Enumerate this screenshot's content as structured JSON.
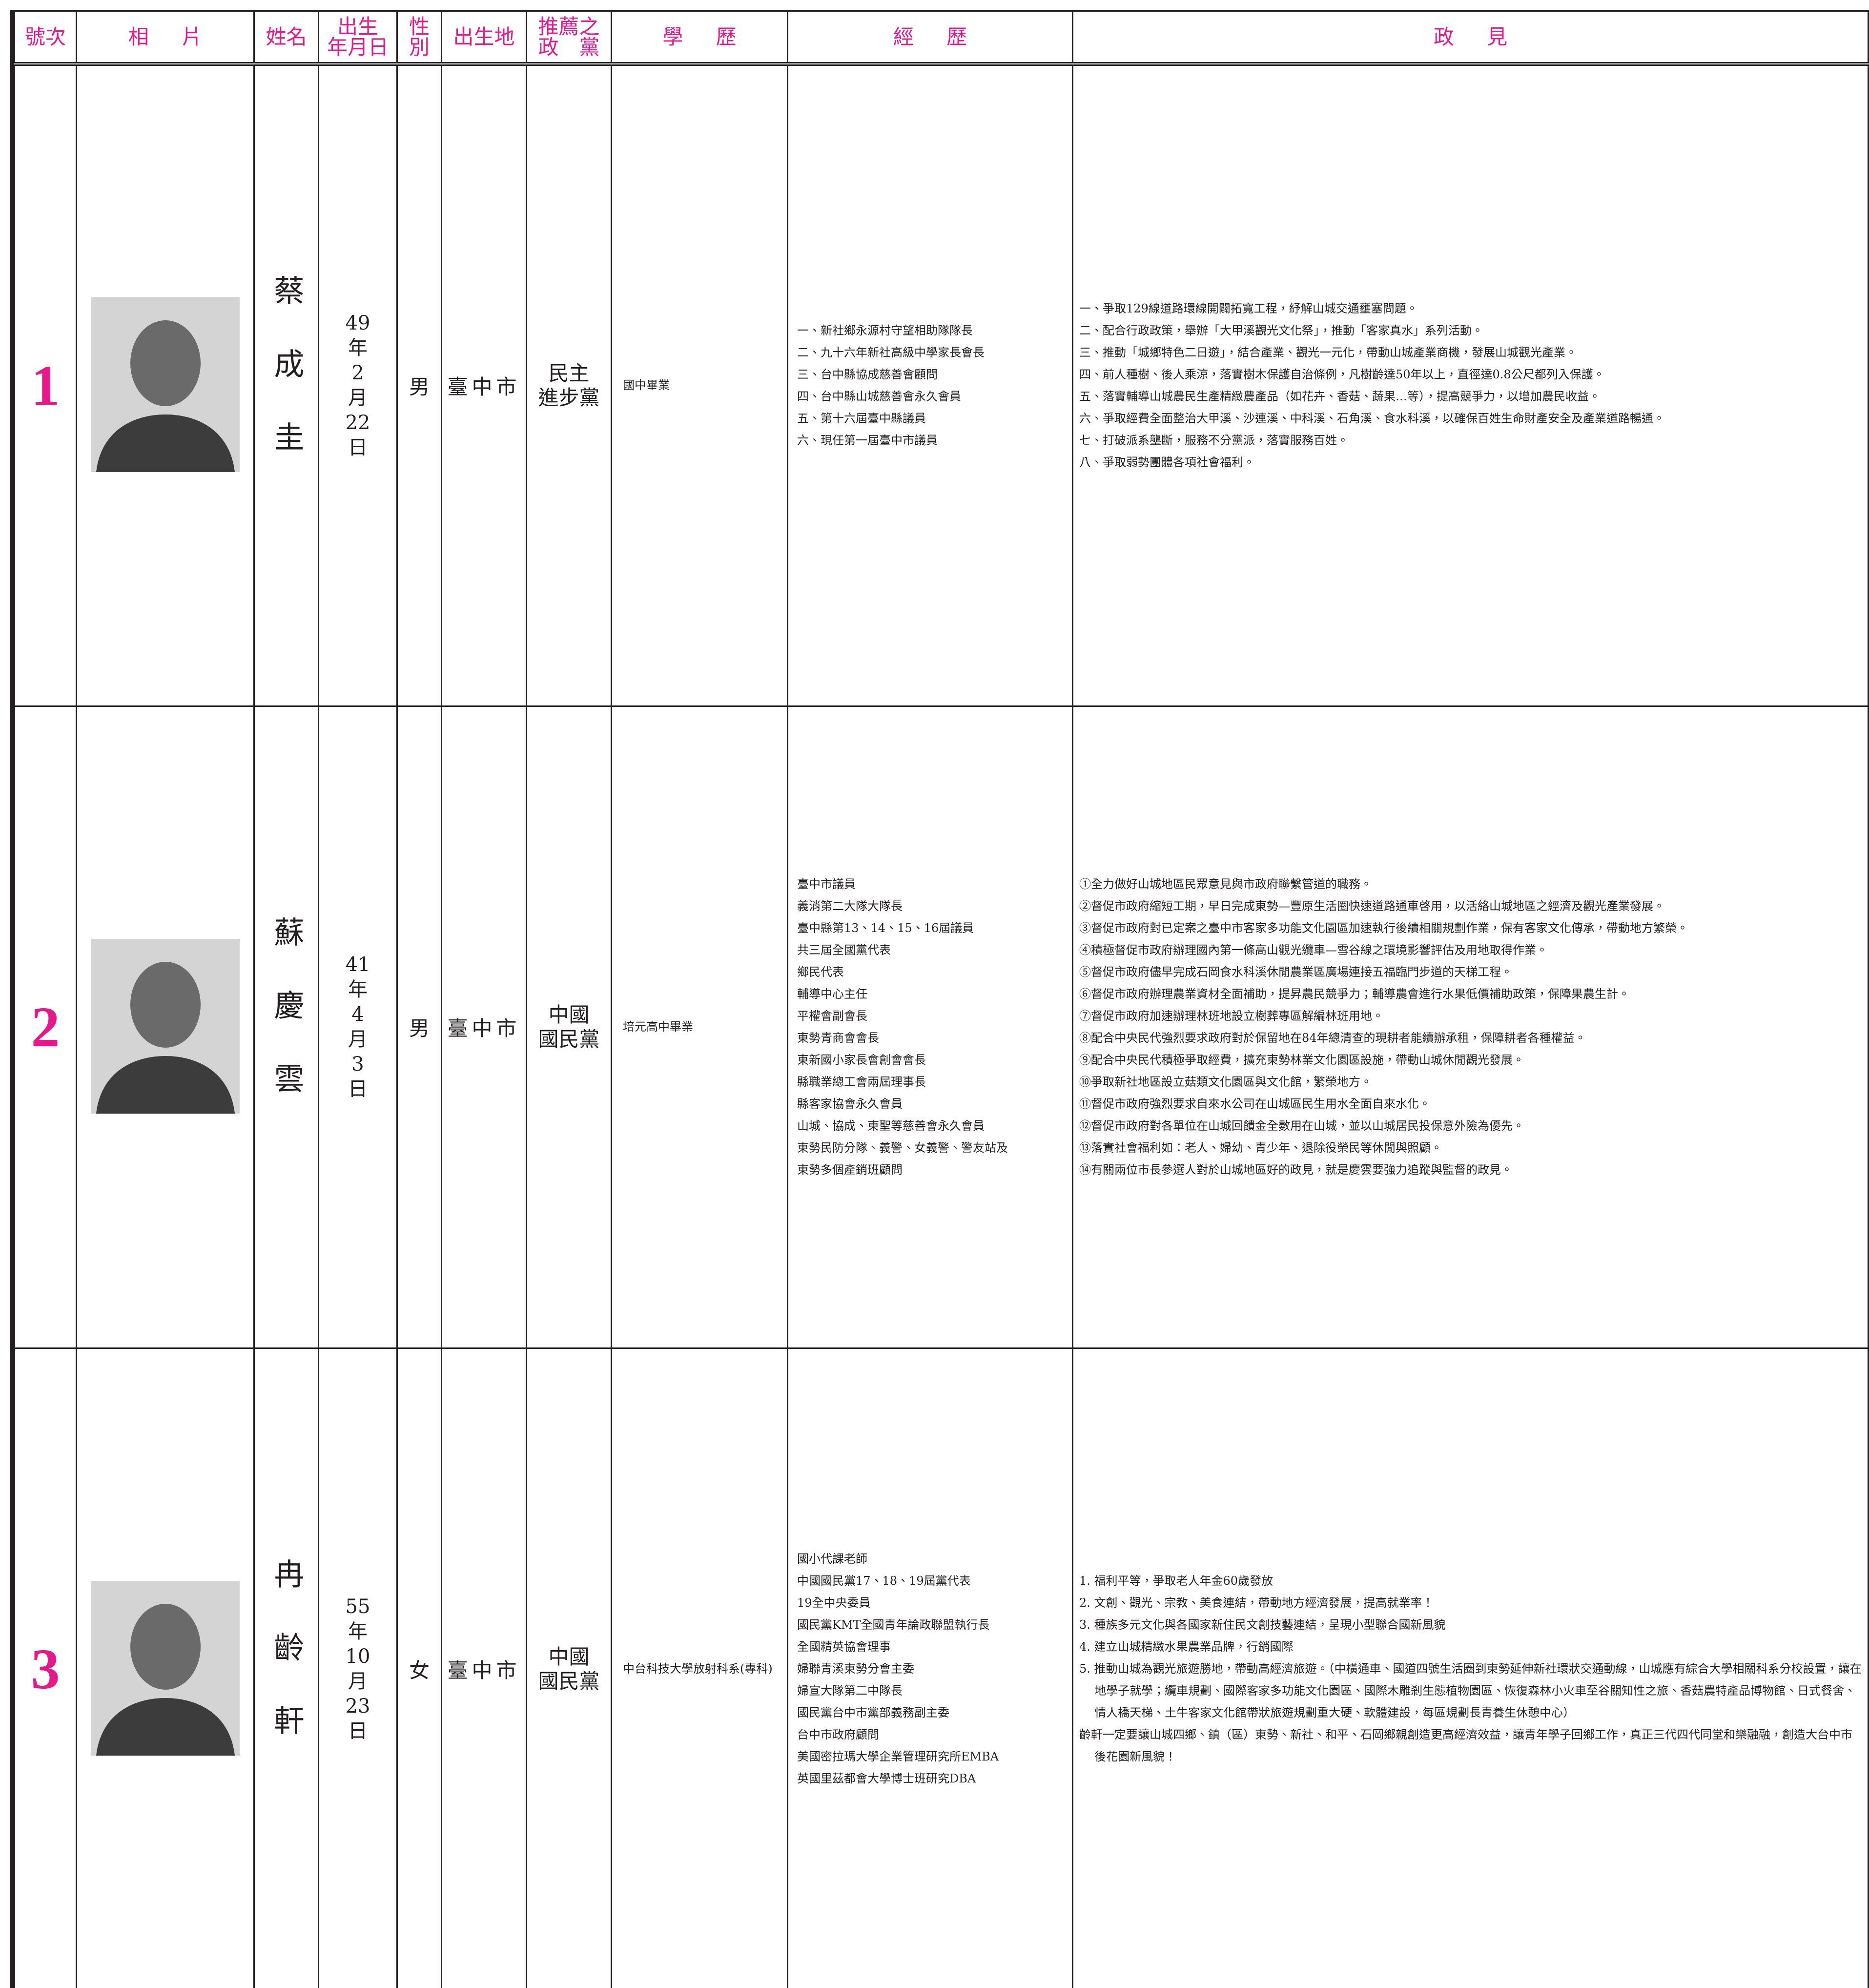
{
  "header": {
    "columns": [
      [
        "號次"
      ],
      [
        "相片"
      ],
      [
        "姓名"
      ],
      [
        "出生",
        "年月日"
      ],
      [
        "性",
        "別"
      ],
      [
        "出生地"
      ],
      [
        "推薦之",
        "政　黨"
      ],
      [
        "學歷"
      ],
      [
        "經歷"
      ],
      [
        "政見"
      ]
    ]
  },
  "rows": [
    {
      "number": "1",
      "name": "蔡成圭",
      "birth": [
        "49",
        "年",
        "2",
        "月",
        "22",
        "日"
      ],
      "gender": "男",
      "birthplace": "臺中市",
      "party": [
        "民主",
        "進步黨"
      ],
      "education": [
        "國中畢業"
      ],
      "experience": [
        "一、新社鄉永源村守望相助隊隊長",
        "二、九十六年新社高級中學家長會長",
        "三、台中縣協成慈善會顧問",
        "四、台中縣山城慈善會永久會員",
        "五、第十六屆臺中縣議員",
        "六、現任第一屆臺中市議員"
      ],
      "platform": [
        "一、爭取129線道路環線開闢拓寬工程，紓解山城交通壅塞問題。",
        "二、配合行政政策，舉辦「大甲溪觀光文化祭」，推動「客家真水」系列活動。",
        "三、推動「城鄉特色二日遊」，結合產業、觀光一元化，帶動山城產業商機，發展山城觀光產業。",
        "四、前人種樹、後人乘涼，落實樹木保護自治條例，凡樹齡達50年以上，直徑達0.8公尺都列入保護。",
        "五、落實輔導山城農民生產精緻農產品（如花卉、香菇、蔬果…等），提高競爭力，以增加農民收益。",
        "六、爭取經費全面整治大甲溪、沙連溪、中科溪、石角溪、食水科溪，以確保百姓生命財產安全及產業道路暢通。",
        "七、打破派系壟斷，服務不分黨派，落實服務百姓。",
        "八、爭取弱勢團體各項社會福利。"
      ]
    },
    {
      "number": "2",
      "name": "蘇慶雲",
      "birth": [
        "41",
        "年",
        "4",
        "月",
        "3",
        "日"
      ],
      "gender": "男",
      "birthplace": "臺中市",
      "party": [
        "中國",
        "國民黨"
      ],
      "education": [
        "培元高中畢業"
      ],
      "experience": [
        "臺中市議員",
        "義消第二大隊大隊長",
        "臺中縣第13、14、15、16屆議員",
        "共三屆全國黨代表",
        "鄉民代表",
        "輔導中心主任",
        "平權會副會長",
        "東勢青商會會長",
        "東新國小家長會創會會長",
        "縣職業總工會兩屆理事長",
        "縣客家協會永久會員",
        "山城、協成、東聖等慈善會永久會員",
        "東勢民防分隊、義警、女義警、警友站及",
        "東勢多個產銷班顧問"
      ],
      "platform": [
        "①全力做好山城地區民眾意見與市政府聯繫管道的職務。",
        "②督促市政府縮短工期，早日完成東勢—豐原生活圈快速道路通車啓用，以活絡山城地區之經濟及觀光產業發展。",
        "③督促市政府對已定案之臺中市客家多功能文化園區加速執行後續相關規劃作業，保有客家文化傳承，帶動地方繁榮。",
        "④積極督促市政府辦理國內第一條高山觀光纜車—雪谷線之環境影響評估及用地取得作業。",
        "⑤督促市政府儘早完成石岡食水科溪休閒農業區廣場連接五福臨門步道的天梯工程。",
        "⑥督促市政府辦理農業資材全面補助，提昇農民競爭力；輔導農會進行水果低價補助政策，保障果農生計。",
        "⑦督促市政府加速辦理林班地設立樹葬專區解編林班用地。",
        "⑧配合中央民代強烈要求政府對於保留地在84年總清查的現耕者能續辦承租，保障耕者各種權益。",
        "⑨配合中央民代積極爭取經費，擴充東勢林業文化園區設施，帶動山城休閒觀光發展。",
        "⑩爭取新社地區設立菇類文化園區與文化館，繁榮地方。",
        "⑪督促市政府強烈要求自來水公司在山城區民生用水全面自來水化。",
        "⑫督促市政府對各單位在山城回饋金全數用在山城，並以山城居民投保意外險為優先。",
        "⑬落實社會福利如：老人、婦幼、青少年、退除役榮民等休閒與照顧。",
        "⑭有關兩位市長參選人對於山城地區好的政見，就是慶雲要強力追蹤與監督的政見。"
      ]
    },
    {
      "number": "3",
      "name": "冉齡軒",
      "birth": [
        "55",
        "年",
        "10",
        "月",
        "23",
        "日"
      ],
      "gender": "女",
      "birthplace": "臺中市",
      "party": [
        "中國",
        "國民黨"
      ],
      "education": [
        "中台科技大學放射科系(專科)"
      ],
      "experience": [
        "國小代課老師",
        "中國國民黨17、18、19屆黨代表",
        "19全中央委員",
        "國民黨KMT全國青年論政聯盟執行長",
        "全國精英協會理事",
        "婦聯青溪東勢分會主委",
        "婦宣大隊第二中隊長",
        "國民黨台中市黨部義務副主委",
        "台中市政府顧問",
        "美國密拉瑪大學企業管理研究所EMBA",
        "英國里茲都會大學博士班研究DBA"
      ],
      "platform": [
        "1. 福利平等，爭取老人年金60歲發放",
        "2. 文創、觀光、宗教、美食連結，帶動地方經濟發展，提高就業率！",
        "3. 種族多元文化與各國家新住民文創技藝連結，呈現小型聯合國新風貌",
        "4. 建立山城精緻水果農業品牌，行銷國際",
        "5. 推動山城為觀光旅遊勝地，帶動高經濟旅遊。（中橫通車、國道四號生活圈到東勢延伸新社環狀交通動線，山城應有綜合大學相關科系分校設置，讓在地學子就學；纜車規劃、國際客家多功能文化園區、國際木雕剎生態植物園區、恢復森林小火車至谷關知性之旅、香菇農特產品博物館、日式餐舍、情人橋天梯、土牛客家文化館帶狀旅遊規劃重大硬、軟體建設，每區規劃長青養生休憩中心）",
        "齡軒一定要讓山城四鄉、鎮（區）東勢、新社、和平、石岡鄉親創造更高經濟效益，讓青年學子回鄉工作，真正三代四代同堂和樂融融，創造大台中市後花園新風貌！"
      ]
    }
  ]
}
